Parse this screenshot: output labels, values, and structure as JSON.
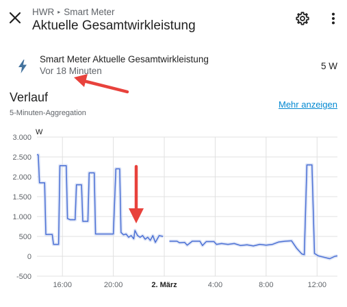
{
  "header": {
    "breadcrumb_area": "HWR",
    "breadcrumb_device": "Smart Meter",
    "title": "Aktuelle Gesamtwirkleistung",
    "close_icon": "close-icon",
    "settings_icon": "gear-icon",
    "more_icon": "more-vert-icon"
  },
  "entity": {
    "icon": "lightning-bolt-icon",
    "name": "Smart Meter Aktuelle Gesamtwirkleistung",
    "last_changed": "Vor 18 Minuten",
    "state": "5 W"
  },
  "history": {
    "title": "Verlauf",
    "subtitle": "5-Minuten-Aggregation",
    "more_link": "Mehr anzeigen"
  },
  "colors": {
    "line": "#4a6fd4",
    "band": "#c9d5f2",
    "grid": "#e0e0e0",
    "link": "#0288d1",
    "annotation_arrow": "#e8423c"
  },
  "chart_data": {
    "type": "line",
    "ylabel": "W",
    "ylim": [
      -500,
      3000
    ],
    "yticks": [
      -500,
      0,
      500,
      1000,
      1500,
      2000,
      2500,
      3000
    ],
    "ytick_labels": [
      "-500",
      "0",
      "500",
      "1.000",
      "1.500",
      "2.000",
      "2.500",
      "3.000"
    ],
    "xlim": [
      14.0,
      37.6
    ],
    "xticks": [
      16,
      20,
      24,
      28,
      32,
      36
    ],
    "xtick_labels": [
      "16:00",
      "20:00",
      "2. März",
      "4:00",
      "8:00",
      "12:00"
    ],
    "xtick_bold": [
      false,
      false,
      true,
      false,
      false,
      false
    ],
    "grid": true,
    "series": [
      {
        "segments": [
          [
            [
              14.0,
              2560
            ],
            [
              14.1,
              2550
            ],
            [
              14.2,
              1850
            ],
            [
              14.6,
              1850
            ],
            [
              14.7,
              550
            ],
            [
              15.2,
              550
            ],
            [
              15.3,
              300
            ],
            [
              15.7,
              300
            ],
            [
              15.8,
              2280
            ],
            [
              16.3,
              2280
            ],
            [
              16.4,
              950
            ],
            [
              16.6,
              920
            ],
            [
              17.0,
              920
            ],
            [
              17.1,
              1800
            ],
            [
              17.5,
              1800
            ],
            [
              17.6,
              880
            ],
            [
              18.0,
              880
            ],
            [
              18.1,
              2100
            ],
            [
              18.5,
              2100
            ],
            [
              18.6,
              560
            ],
            [
              20.0,
              560
            ],
            [
              20.2,
              2200
            ],
            [
              20.5,
              2200
            ],
            [
              20.6,
              600
            ],
            [
              20.8,
              540
            ],
            [
              21.0,
              560
            ],
            [
              21.2,
              480
            ],
            [
              21.4,
              520
            ],
            [
              21.6,
              440
            ],
            [
              21.7,
              650
            ],
            [
              21.9,
              520
            ],
            [
              22.1,
              480
            ],
            [
              22.3,
              520
            ],
            [
              22.5,
              430
            ],
            [
              22.7,
              480
            ],
            [
              22.9,
              400
            ],
            [
              23.1,
              520
            ],
            [
              23.3,
              350
            ],
            [
              23.6,
              520
            ],
            [
              23.9,
              500
            ]
          ],
          [
            [
              24.4,
              380
            ],
            [
              25.0,
              380
            ],
            [
              25.2,
              340
            ],
            [
              25.6,
              350
            ],
            [
              25.8,
              280
            ],
            [
              26.2,
              380
            ],
            [
              26.8,
              380
            ],
            [
              27.0,
              270
            ],
            [
              27.3,
              370
            ],
            [
              27.9,
              370
            ],
            [
              28.1,
              300
            ],
            [
              28.5,
              320
            ],
            [
              29.0,
              300
            ],
            [
              29.5,
              320
            ],
            [
              30.0,
              270
            ],
            [
              30.5,
              290
            ],
            [
              31.0,
              260
            ],
            [
              31.5,
              300
            ],
            [
              32.0,
              280
            ],
            [
              32.5,
              300
            ],
            [
              33.0,
              360
            ],
            [
              33.5,
              380
            ],
            [
              34.0,
              390
            ],
            [
              34.4,
              200
            ],
            [
              34.8,
              60
            ],
            [
              35.0,
              40
            ],
            [
              35.2,
              2300
            ],
            [
              35.6,
              2300
            ],
            [
              35.8,
              70
            ],
            [
              36.1,
              10
            ],
            [
              36.5,
              -20
            ],
            [
              37.0,
              -60
            ],
            [
              37.4,
              0
            ],
            [
              37.6,
              10
            ]
          ]
        ]
      }
    ]
  }
}
